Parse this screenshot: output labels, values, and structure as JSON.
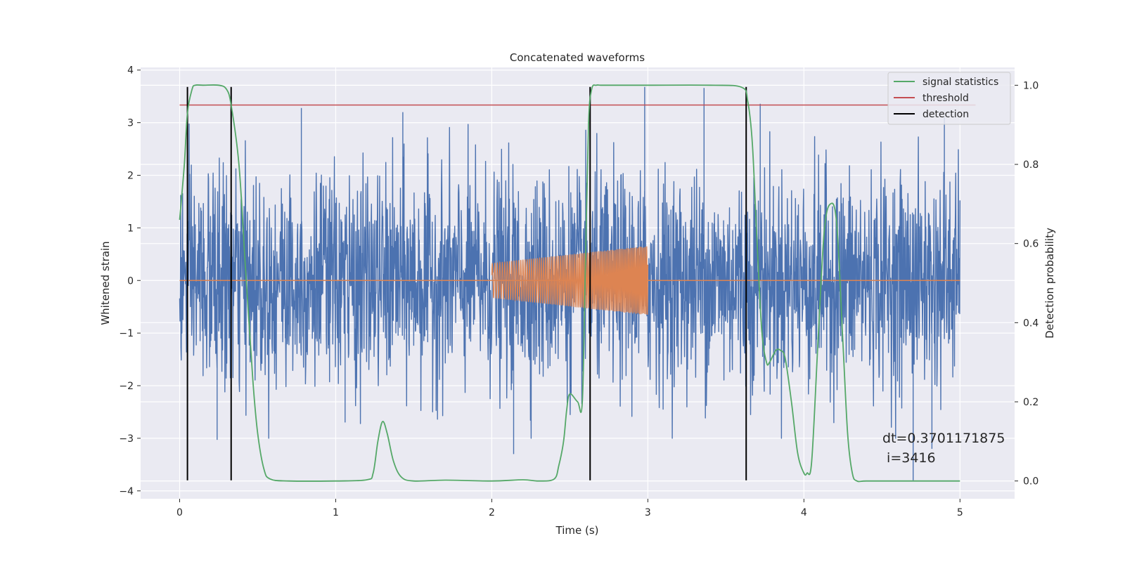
{
  "chart_data": {
    "type": "line",
    "title": "Concatenated waveforms",
    "xlabel": "Time (s)",
    "ylabel": "Whitened strain",
    "y2label": "Detection probability",
    "xlim": [
      -0.25,
      5.35
    ],
    "ylim": [
      -4.15,
      4.05
    ],
    "y2lim": [
      -0.045,
      1.045
    ],
    "x_ticks": [
      0,
      1,
      2,
      3,
      4,
      5
    ],
    "x_tick_labels": [
      "0",
      "1",
      "2",
      "3",
      "4",
      "5"
    ],
    "y_ticks": [
      -4,
      -3,
      -2,
      -1,
      0,
      1,
      2,
      3,
      4
    ],
    "y_tick_labels": [
      "−4",
      "−3",
      "−2",
      "−1",
      "0",
      "1",
      "2",
      "3",
      "4"
    ],
    "y2_ticks": [
      0.0,
      0.2,
      0.4,
      0.6,
      0.8,
      1.0
    ],
    "y2_tick_labels": [
      "0.0",
      "0.2",
      "0.4",
      "0.6",
      "0.8",
      "1.0"
    ],
    "grid": true,
    "legend_position": "top-right",
    "colors": {
      "noise": "#4c72b0",
      "waveform": "#dd8452",
      "statistic": "#55a868",
      "threshold": "#c44e52",
      "detection": "#000000",
      "background": "#eaeaf2",
      "grid": "#ffffff"
    },
    "noise": {
      "x_range": [
        0,
        5
      ],
      "envelope_approx": 2.5,
      "extreme_peaks": [
        [
          0.78,
          3.28
        ],
        [
          1.43,
          3.2
        ],
        [
          2.98,
          3.68
        ],
        [
          3.36,
          3.66
        ],
        [
          3.72,
          3.36
        ],
        [
          4.9,
          3.1
        ],
        [
          0.24,
          -3.03
        ],
        [
          1.06,
          -2.7
        ],
        [
          2.14,
          -3.3
        ],
        [
          4.7,
          -3.8
        ],
        [
          4.82,
          -3.2
        ]
      ]
    },
    "waveform": {
      "x_range": [
        2.0,
        3.0
      ],
      "amplitude_start": 0.33,
      "amplitude_end": 0.66,
      "baseline": 0
    },
    "signal_statistics": {
      "axis": "right",
      "x": [
        0.0,
        0.03,
        0.05,
        0.08,
        0.1,
        0.15,
        0.25,
        0.3,
        0.33,
        0.38,
        0.42,
        0.47,
        0.5,
        0.54,
        0.58,
        0.7,
        1.0,
        1.2,
        1.24,
        1.27,
        1.3,
        1.33,
        1.37,
        1.42,
        1.5,
        1.7,
        2.0,
        2.2,
        2.3,
        2.4,
        2.43,
        2.46,
        2.48,
        2.5,
        2.55,
        2.58,
        2.6,
        2.62,
        2.64,
        2.67,
        2.7,
        2.8,
        3.0,
        3.4,
        3.6,
        3.64,
        3.67,
        3.7,
        3.73,
        3.76,
        3.78,
        3.82,
        3.85,
        3.88,
        3.92,
        3.96,
        4.0,
        4.02,
        4.05,
        4.09,
        4.13,
        4.17,
        4.21,
        4.25,
        4.28,
        4.31,
        4.34,
        4.4,
        4.6,
        5.0
      ],
      "y": [
        0.66,
        0.8,
        0.93,
        0.99,
        1.0,
        1.0,
        1.0,
        0.99,
        0.95,
        0.8,
        0.55,
        0.25,
        0.12,
        0.03,
        0.005,
        0.0,
        0.0,
        0.003,
        0.02,
        0.1,
        0.15,
        0.12,
        0.05,
        0.01,
        0.0,
        0.002,
        0.0,
        0.003,
        0.0,
        0.005,
        0.04,
        0.1,
        0.18,
        0.22,
        0.2,
        0.2,
        0.55,
        0.9,
        0.99,
        1.0,
        1.0,
        1.0,
        1.0,
        1.0,
        0.995,
        0.96,
        0.85,
        0.6,
        0.38,
        0.3,
        0.3,
        0.33,
        0.33,
        0.31,
        0.2,
        0.07,
        0.02,
        0.02,
        0.05,
        0.35,
        0.63,
        0.7,
        0.65,
        0.35,
        0.12,
        0.02,
        0.0,
        0.0,
        0.0,
        0.0
      ]
    },
    "threshold": {
      "axis": "right",
      "value": 0.95,
      "x_range": [
        0,
        5.1
      ]
    },
    "detections": [
      0.05,
      0.33,
      2.63,
      3.63
    ],
    "detection_range": [
      -3.8,
      3.68
    ],
    "legend": [
      {
        "label": "signal statistics",
        "series": "statistic"
      },
      {
        "label": "threshold",
        "series": "threshold"
      },
      {
        "label": "detection",
        "series": "detection"
      }
    ],
    "annotation": {
      "dt": "dt=0.3701171875",
      "i": " i=3416",
      "x": 4.5,
      "y": -3.0
    }
  }
}
